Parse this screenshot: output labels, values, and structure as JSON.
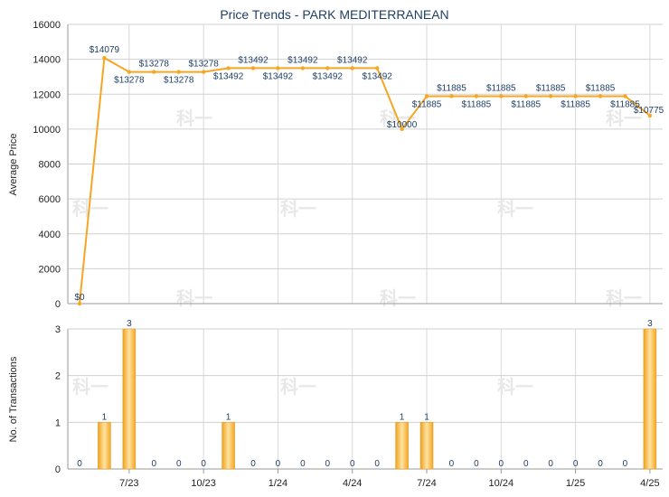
{
  "chart_data": [
    {
      "type": "line",
      "title": "Price Trends - PARK MEDITERRANEAN",
      "ylabel": "Average Price",
      "ylim": [
        0,
        16000
      ],
      "yticks": [
        0,
        2000,
        4000,
        6000,
        8000,
        10000,
        12000,
        14000,
        16000
      ],
      "line_color": "#f5a623",
      "grid": true,
      "series": [
        {
          "values": [
            0,
            14079,
            13278,
            13278,
            13278,
            13278,
            13492,
            13492,
            13492,
            13492,
            13492,
            13492,
            13492,
            10000,
            11885,
            11885,
            11885,
            11885,
            11885,
            11885,
            11885,
            11885,
            11885,
            10775
          ],
          "labels": [
            "$0",
            "$14079",
            "$13278",
            "$13278",
            "$13278",
            "$13278",
            "$13492",
            "$13492",
            "$13492",
            "$13492",
            "$13492",
            "$13492",
            "$13492",
            "$10000",
            "$11885",
            "$11885",
            "$11885",
            "$11885",
            "$11885",
            "$11885",
            "$11885",
            "$11885",
            "$11885",
            "$10775"
          ]
        }
      ]
    },
    {
      "type": "bar",
      "ylabel": "No. of Transactions",
      "ylim": [
        0,
        3
      ],
      "yticks": [
        0,
        1,
        2,
        3
      ],
      "bar_color": "#f5a623",
      "grid": true,
      "values": [
        0,
        1,
        3,
        0,
        0,
        0,
        1,
        0,
        0,
        0,
        0,
        0,
        0,
        1,
        1,
        0,
        0,
        0,
        0,
        0,
        0,
        0,
        0,
        3
      ],
      "x_tick_labels": [
        "7/23",
        "10/23",
        "1/24",
        "4/24",
        "7/24",
        "10/24",
        "1/25",
        "4/25"
      ]
    }
  ],
  "watermark_text": "科一"
}
